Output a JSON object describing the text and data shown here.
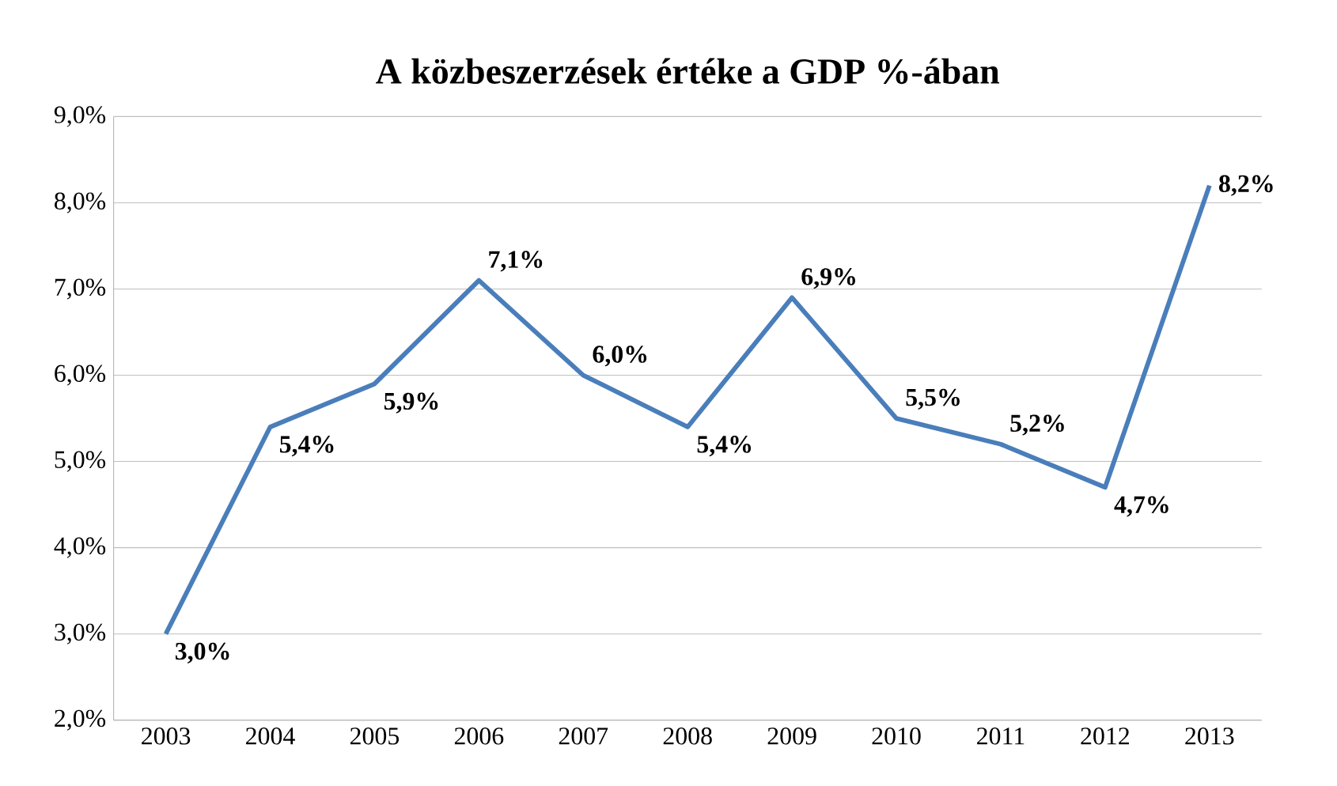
{
  "chart_data": {
    "type": "line",
    "title": "A közbeszerzések értéke a GDP %-ában",
    "categories": [
      "2003",
      "2004",
      "2005",
      "2006",
      "2007",
      "2008",
      "2009",
      "2010",
      "2011",
      "2012",
      "2013"
    ],
    "series": [
      {
        "color": "#4a7ebb",
        "values": [
          3.0,
          5.4,
          5.9,
          7.1,
          6.0,
          5.4,
          6.9,
          5.5,
          5.2,
          4.7,
          8.2
        ],
        "value_labels": [
          "3,0%",
          "5,4%",
          "5,9%",
          "7,1%",
          "6,0%",
          "5,4%",
          "6,9%",
          "5,5%",
          "5,2%",
          "4,7%",
          "8,2%"
        ]
      }
    ],
    "ylim": [
      2,
      9
    ],
    "yticks": [
      {
        "value": 2,
        "label": "2,0%"
      },
      {
        "value": 3,
        "label": "3,0%"
      },
      {
        "value": 4,
        "label": "4,0%"
      },
      {
        "value": 5,
        "label": "5,0%"
      },
      {
        "value": 6,
        "label": "6,0%"
      },
      {
        "value": 7,
        "label": "7,0%"
      },
      {
        "value": 8,
        "label": "8,0%"
      },
      {
        "value": 9,
        "label": "9,0%"
      }
    ],
    "grid": "y",
    "marker": "none",
    "line_style": "solid"
  }
}
